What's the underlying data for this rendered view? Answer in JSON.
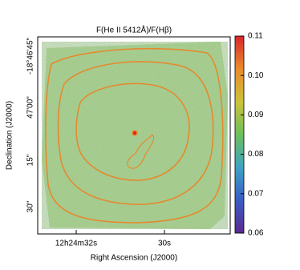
{
  "chart_data": {
    "type": "image",
    "title": "F(He II 5412Å)/F(Hβ)",
    "xlabel": "Right Ascension (J2000)",
    "ylabel": "Declination (J2000)",
    "xticks": [
      "12h24m32s",
      "30s"
    ],
    "yticks": [
      "-18°46'45\"",
      "47'00\"",
      "15\"",
      "30\""
    ],
    "colorbar": {
      "lim": [
        0.06,
        0.11
      ],
      "ticks": [
        0.06,
        0.07,
        0.08,
        0.09,
        0.1,
        0.11
      ],
      "tick_labels": [
        "0.06",
        "0.07",
        "0.08",
        "0.09",
        "0.10",
        "0.11"
      ],
      "colormap": [
        "#5a2a8e",
        "#3a5cc6",
        "#3fa3c4",
        "#6cbf5a",
        "#cbc23a",
        "#ea8a2c",
        "#d8262a"
      ]
    }
  }
}
